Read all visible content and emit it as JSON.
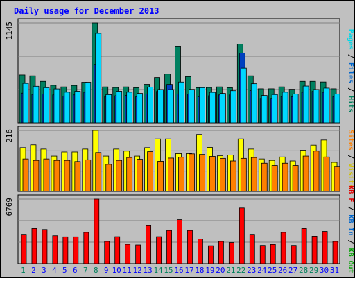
{
  "chart_data": {
    "type": "bar",
    "title": "Daily usage for December 2013",
    "categories": [
      "1",
      "2",
      "3",
      "4",
      "5",
      "6",
      "7",
      "8",
      "9",
      "10",
      "11",
      "12",
      "13",
      "14",
      "15",
      "16",
      "17",
      "18",
      "19",
      "20",
      "21",
      "22",
      "23",
      "24",
      "25",
      "26",
      "27",
      "28",
      "29",
      "30",
      "31"
    ],
    "weekend_days": [
      "1",
      "7",
      "8",
      "14",
      "15",
      "21",
      "22",
      "28",
      "29"
    ],
    "panels": [
      {
        "id": "hits-files-pages",
        "ymax_label": "1145",
        "ylim": [
          0,
          1145
        ],
        "right_label_parts": [
          {
            "text": "Pages",
            "color": "#00d8e8"
          },
          {
            "text": " / ",
            "color": "#000000"
          },
          {
            "text": "Files",
            "color": "#0066cc"
          },
          {
            "text": " / ",
            "color": "#000000"
          },
          {
            "text": "Hits",
            "color": "#00805c"
          }
        ],
        "series": [
          {
            "name": "Hits",
            "color": "#008060",
            "values": [
              549,
              539,
              475,
              430,
              412,
              428,
              465,
              1145,
              412,
              405,
              412,
              403,
              441,
              520,
              559,
              872,
              530,
              403,
              405,
              412,
              403,
              903,
              539,
              390,
              390,
              412,
              385,
              475,
              475,
              468,
              390
            ]
          },
          {
            "name": "Files",
            "color": "#0040c0",
            "values": [
              340,
              325,
              330,
              320,
              305,
              320,
              350,
              670,
              300,
              310,
              315,
              300,
              330,
              360,
              440,
              330,
              330,
              300,
              310,
              320,
              320,
              800,
              370,
              280,
              280,
              300,
              300,
              350,
              360,
              350,
              300
            ]
          },
          {
            "name": "Pages",
            "color": "#00d8ff",
            "values": [
              452,
              419,
              403,
              389,
              351,
              362,
              465,
              1026,
              323,
              362,
              351,
              337,
              410,
              382,
              381,
              467,
              384,
              403,
              349,
              337,
              368,
              627,
              448,
              313,
              324,
              351,
              329,
              421,
              382,
              398,
              329
            ]
          }
        ]
      },
      {
        "id": "visits-sites",
        "ymax_label": "216",
        "ylim": [
          0,
          216
        ],
        "right_label_parts": [
          {
            "text": "Sites",
            "color": "#ff8000"
          },
          {
            "text": " / ",
            "color": "#000000"
          },
          {
            "text": "Visits",
            "color": "#d0c000"
          }
        ],
        "series": [
          {
            "name": "Visits",
            "color": "#ffff00",
            "values": [
              155,
              165,
              150,
              125,
              140,
              140,
              150,
              216,
              125,
              150,
              143,
              125,
              155,
              186,
              186,
              134,
              134,
              202,
              156,
              126,
              129,
              186,
              150,
              115,
              110,
              122,
              108,
              146,
              164,
              182,
              103
            ]
          },
          {
            "name": "Sites",
            "color": "#ff8000",
            "values": [
              115,
              110,
              115,
              110,
              110,
              106,
              112,
              138,
              96,
              110,
              120,
              114,
              141,
              107,
              118,
              121,
              133,
              131,
              124,
              117,
              108,
              117,
              120,
              100,
              92,
              100,
              92,
              125,
              143,
              122,
              89
            ]
          }
        ]
      },
      {
        "id": "kb-f",
        "ymax_label": "6769",
        "ylim": [
          0,
          6769
        ],
        "right_label_parts": [
          {
            "text": "KB F",
            "color": "#e00000"
          },
          {
            "text": " / ",
            "color": "#000000"
          },
          {
            "text": "KB In",
            "color": "#0066cc"
          },
          {
            "text": " / ",
            "color": "#000000"
          },
          {
            "text": "KB Out",
            "color": "#00a000"
          }
        ],
        "series": [
          {
            "name": "KB F",
            "color": "#ff0000",
            "values": [
              3081,
              3681,
              3581,
              2931,
              2816,
              2816,
              3281,
              6769,
              2331,
              2831,
              2031,
              1964,
              3981,
              2831,
              3481,
              4616,
              3481,
              2581,
              1881,
              2331,
              2216,
              5838,
              3081,
              1914,
              2016,
              3281,
              1914,
              3681,
              2881,
              3381,
              2331
            ]
          }
        ]
      }
    ]
  },
  "colors": {
    "frame_bg": "#c0c0c0",
    "panel_bg": "#bfbfbf",
    "title_color": "#0000ff",
    "weekday_label": "#0000ff",
    "weekend_label": "#00805c"
  }
}
